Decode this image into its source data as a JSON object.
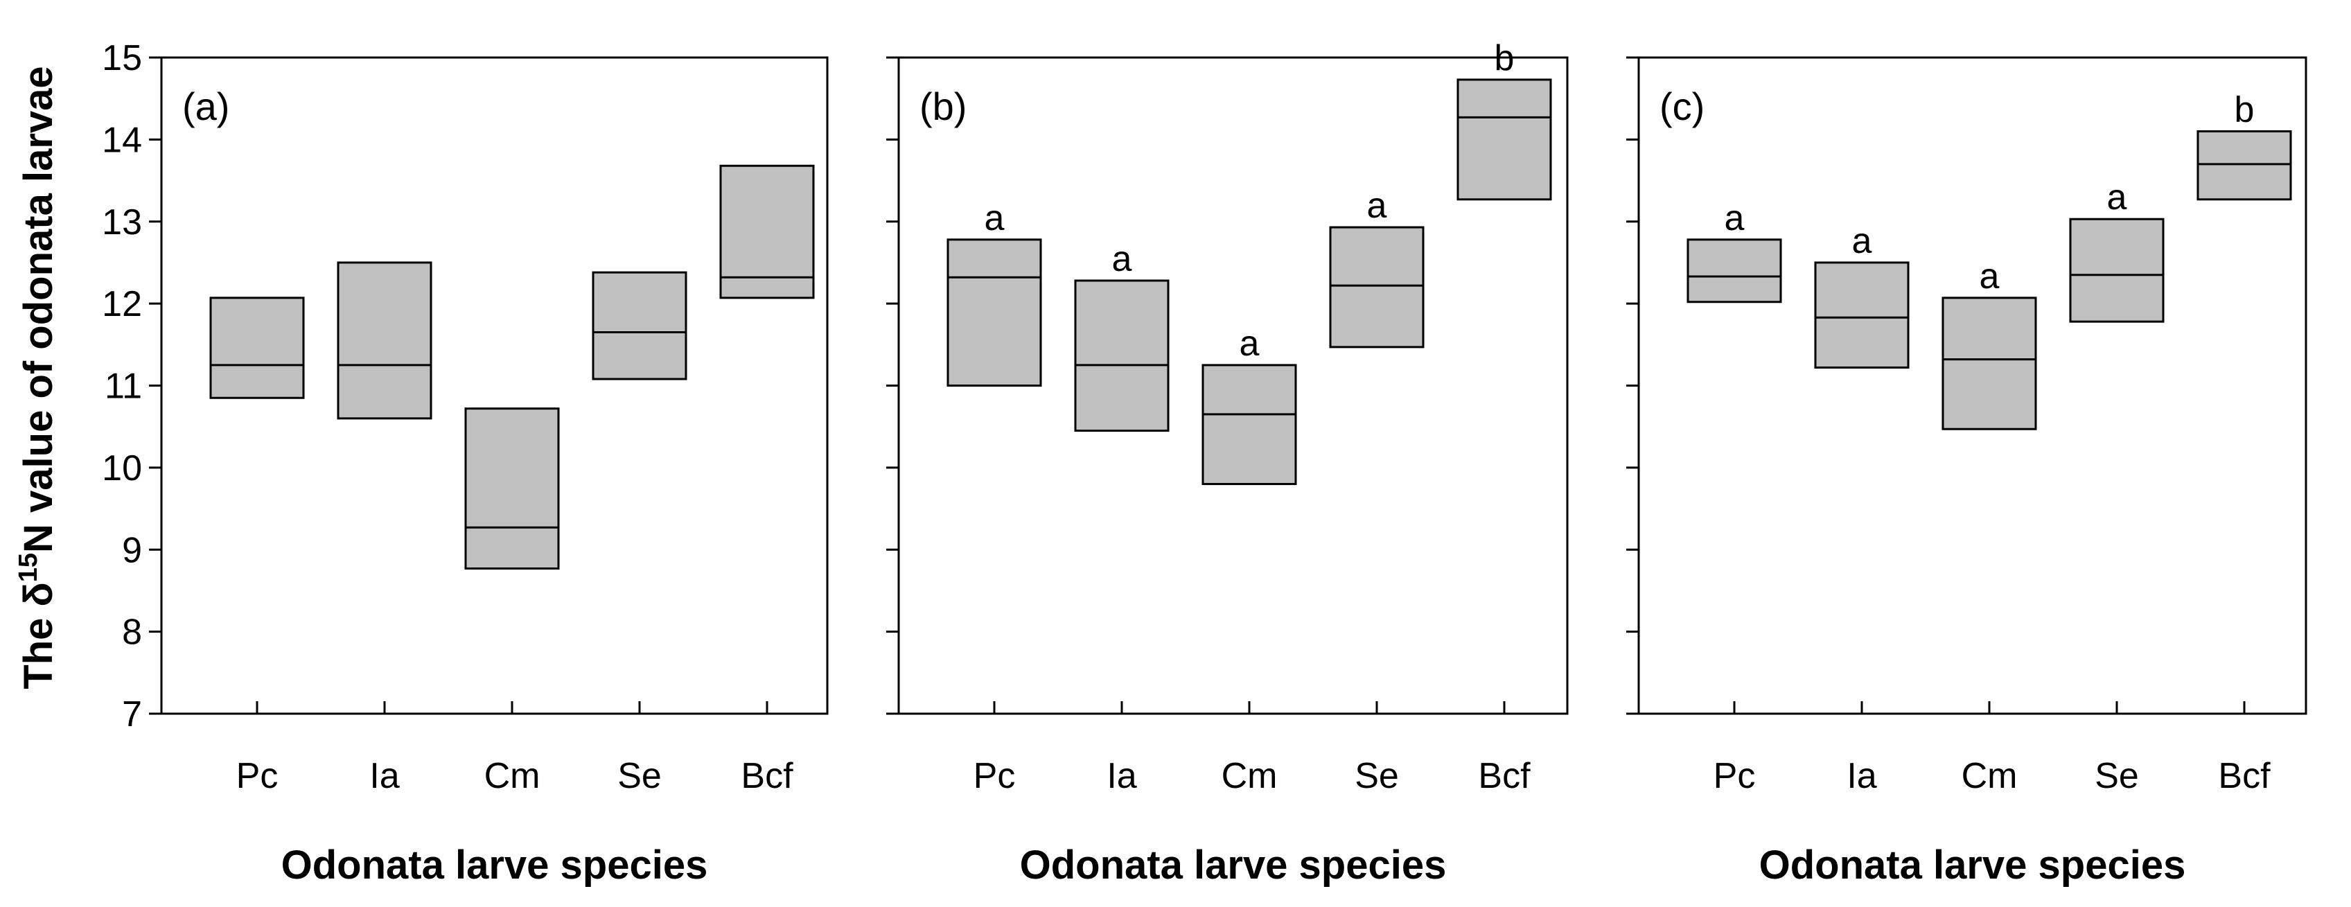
{
  "ylabel_parts": {
    "pre": "The δ",
    "sup": "15",
    "post": "N value of odonata larvae"
  },
  "chart_data": [
    {
      "type": "box",
      "panel": "(a)",
      "xlabel": "Odonata larve species",
      "ylabel": "The δ15N value of odonata larvae",
      "categories": [
        "Pc",
        "Ia",
        "Cm",
        "Se",
        "Bcf"
      ],
      "ylim": [
        7,
        15
      ],
      "yticks": [
        7,
        8,
        9,
        10,
        11,
        12,
        13,
        14,
        15
      ],
      "boxes": [
        {
          "q1": 10.85,
          "median": 11.25,
          "q3": 12.07,
          "label": ""
        },
        {
          "q1": 10.6,
          "median": 11.25,
          "q3": 12.5,
          "label": ""
        },
        {
          "q1": 8.77,
          "median": 9.27,
          "q3": 10.72,
          "label": ""
        },
        {
          "q1": 11.08,
          "median": 11.65,
          "q3": 12.38,
          "label": ""
        },
        {
          "q1": 12.07,
          "median": 12.32,
          "q3": 13.68,
          "label": ""
        }
      ]
    },
    {
      "type": "box",
      "panel": "(b)",
      "xlabel": "Odonata larve species",
      "ylabel": "",
      "categories": [
        "Pc",
        "Ia",
        "Cm",
        "Se",
        "Bcf"
      ],
      "ylim": [
        7,
        15
      ],
      "yticks": [
        7,
        8,
        9,
        10,
        11,
        12,
        13,
        14,
        15
      ],
      "boxes": [
        {
          "q1": 11.0,
          "median": 12.32,
          "q3": 12.78,
          "label": "a"
        },
        {
          "q1": 10.45,
          "median": 11.25,
          "q3": 12.28,
          "label": "a"
        },
        {
          "q1": 9.8,
          "median": 10.65,
          "q3": 11.25,
          "label": "a"
        },
        {
          "q1": 11.47,
          "median": 12.22,
          "q3": 12.93,
          "label": "a"
        },
        {
          "q1": 13.27,
          "median": 14.27,
          "q3": 14.73,
          "label": "b"
        }
      ]
    },
    {
      "type": "box",
      "panel": "(c)",
      "xlabel": "Odonata larve species",
      "ylabel": "",
      "categories": [
        "Pc",
        "Ia",
        "Cm",
        "Se",
        "Bcf"
      ],
      "ylim": [
        7,
        15
      ],
      "yticks": [
        7,
        8,
        9,
        10,
        11,
        12,
        13,
        14,
        15
      ],
      "boxes": [
        {
          "q1": 12.02,
          "median": 12.33,
          "q3": 12.78,
          "label": "a"
        },
        {
          "q1": 11.22,
          "median": 11.83,
          "q3": 12.5,
          "label": "a"
        },
        {
          "q1": 10.47,
          "median": 11.32,
          "q3": 12.07,
          "label": "a"
        },
        {
          "q1": 11.78,
          "median": 12.35,
          "q3": 13.03,
          "label": "a"
        },
        {
          "q1": 13.27,
          "median": 13.7,
          "q3": 14.1,
          "label": "b"
        }
      ]
    }
  ]
}
